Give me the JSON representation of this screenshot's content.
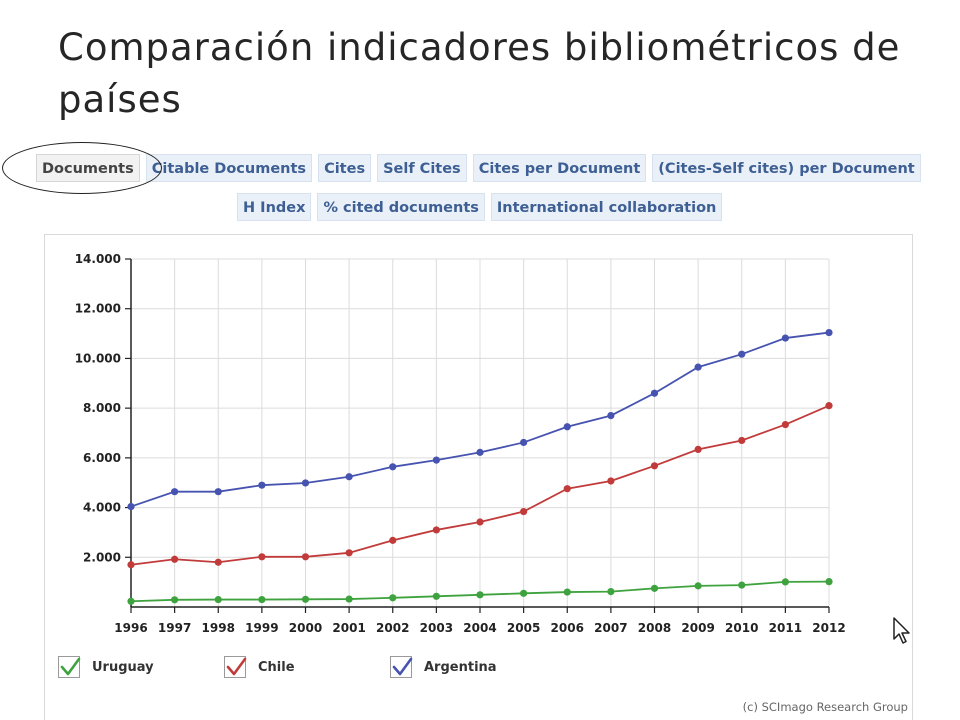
{
  "title": "Comparación indicadores bibliométricos de países",
  "tabs_row1": [
    {
      "label": "Documents",
      "active": true
    },
    {
      "label": "Citable Documents",
      "active": false
    },
    {
      "label": "Cites",
      "active": false
    },
    {
      "label": "Self Cites",
      "active": false
    },
    {
      "label": "Cites per Document",
      "active": false
    },
    {
      "label": "(Cites-Self cites) per Document",
      "active": false
    }
  ],
  "tabs_row2": [
    {
      "label": "H Index",
      "active": false
    },
    {
      "label": "% cited documents",
      "active": false
    },
    {
      "label": "International collaboration",
      "active": false
    }
  ],
  "credit": "(c) SCImago Research Group",
  "chart_data": {
    "type": "line",
    "title": "",
    "xlabel": "",
    "ylabel": "",
    "x": [
      1996,
      1997,
      1998,
      1999,
      2000,
      2001,
      2002,
      2003,
      2004,
      2005,
      2006,
      2007,
      2008,
      2009,
      2010,
      2011,
      2012
    ],
    "ylim": [
      0,
      14000
    ],
    "yticks": [
      2000,
      4000,
      6000,
      8000,
      10000,
      12000,
      14000
    ],
    "ytick_labels": [
      "2.000",
      "4.000",
      "6.000",
      "8.000",
      "10.000",
      "12.000",
      "14.000"
    ],
    "grid": true,
    "legend_position": "bottom-left",
    "series": [
      {
        "name": "Uruguay",
        "color": "#3ea33e",
        "values": [
          230,
          290,
          300,
          300,
          310,
          320,
          370,
          430,
          490,
          550,
          600,
          620,
          750,
          850,
          880,
          1010,
          1020
        ]
      },
      {
        "name": "Chile",
        "color": "#c23b3b",
        "values": [
          1700,
          1920,
          1800,
          2020,
          2020,
          2180,
          2680,
          3100,
          3420,
          3840,
          4760,
          5070,
          5680,
          6340,
          6700,
          7340,
          8100
        ]
      },
      {
        "name": "Argentina",
        "color": "#4653b0",
        "values": [
          4040,
          4640,
          4640,
          4900,
          4990,
          5240,
          5640,
          5910,
          6220,
          6620,
          7250,
          7700,
          8600,
          9650,
          10170,
          10820,
          11040
        ]
      }
    ]
  }
}
